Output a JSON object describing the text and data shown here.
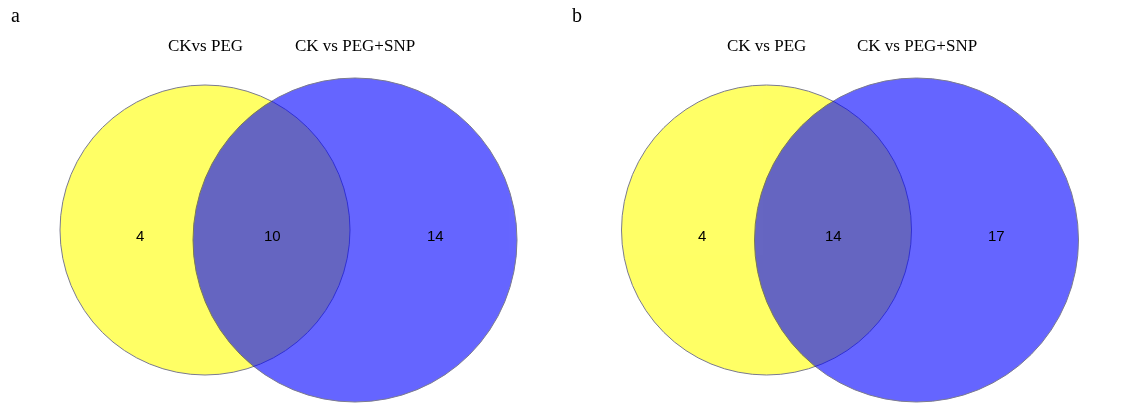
{
  "chart_data": [
    {
      "type": "other",
      "annotations": [
        "a"
      ],
      "categories": [
        "CKvs PEG",
        null,
        "CK vs PEG+SNP"
      ],
      "values": [
        4,
        10,
        14
      ],
      "data_labels": true,
      "colors": [
        "#ffff00",
        null,
        "#0000ff"
      ]
    },
    {
      "type": "other",
      "annotations": [
        "b"
      ],
      "categories": [
        "CK vs PEG",
        null,
        "CK vs PEG+SNP"
      ],
      "values": [
        4,
        14,
        17
      ],
      "data_labels": true,
      "colors": [
        "#ffff00",
        null,
        "#0000ff"
      ]
    }
  ]
}
